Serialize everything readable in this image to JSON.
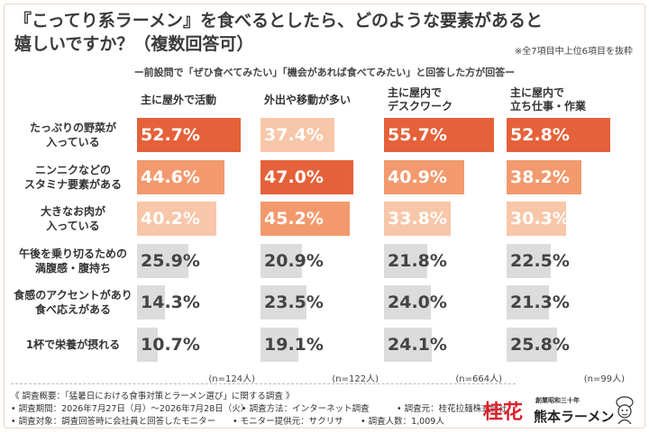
{
  "title_line1": "『こってり系ラーメン』を食べるとしたら、どのような要素があると",
  "title_line2": "嬉しいですか？（複数回答可）",
  "note": "※全7項目中上位6項目を抜粋",
  "subtitle": "ー前設問で「ぜひ食べてみたい」「機会があれば食べてみたい」と回答した方が回答ー",
  "colors": {
    "strong": "#e5613a",
    "medium": "#f29a6e",
    "light": "#f8c6a8",
    "gray": "#dcdcdc",
    "strong_text": "#ffffff",
    "medium_text": "#ffffff",
    "light_text": "#ffffff",
    "gray_text": "#444444"
  },
  "chart_data": {
    "type": "bar",
    "orientation": "horizontal",
    "unit": "%",
    "categories": [
      "たっぷりの野菜が\n入っている",
      "ニンニクなどの\nスタミナ要素がある",
      "大きなお肉が\n入っている",
      "午後を乗り切るための\n満腹感・腹持ち",
      "食感のアクセントがあり\n食べ応えがある",
      "1杯で栄養が摂れる"
    ],
    "series": [
      {
        "name": "主に屋外で活動",
        "values": [
          52.7,
          44.6,
          40.2,
          25.9,
          14.3,
          10.7
        ],
        "labels": [
          "52.7%",
          "44.6%",
          "40.2%",
          "25.9%",
          "14.3%",
          "10.7%"
        ],
        "n": "(n=124人)"
      },
      {
        "name": "外出や移動が多い",
        "values": [
          37.4,
          47.0,
          45.2,
          20.9,
          23.5,
          19.1
        ],
        "labels": [
          "37.4%",
          "47.0%",
          "45.2%",
          "20.9%",
          "23.5%",
          "19.1%"
        ],
        "n": "(n=122人)"
      },
      {
        "name": "主に屋内で\nデスクワーク",
        "values": [
          55.7,
          40.9,
          33.8,
          21.8,
          24.0,
          24.1
        ],
        "labels": [
          "55.7%",
          "40.9%",
          "33.8%",
          "21.8%",
          "24.0%",
          "24.1%"
        ],
        "n": "(n=664人)"
      },
      {
        "name": "主に屋内で\n立ち仕事・作業",
        "values": [
          52.8,
          38.2,
          30.3,
          22.5,
          21.3,
          25.8
        ],
        "labels": [
          "52.8%",
          "38.2%",
          "30.3%",
          "22.5%",
          "21.3%",
          "25.8%"
        ],
        "n": "(n=99人)"
      }
    ],
    "xlim": [
      0,
      60
    ],
    "grid": false,
    "legend": "none"
  },
  "footer": {
    "overview": "《 調査概要：「猛暑日における食事対策とラーメン選び」に関する調査 》",
    "period": "• 調査期間：2026年7月27日（月）〜2026年7月28日（火）",
    "method": "• 調査方法：インターネット調査",
    "source": "• 調査元：桂花拉麺株式会社",
    "target": "• 調査対象：調査回答時に会社員と回答したモニター",
    "provider": "• モニター提供元：サクリサ",
    "count": "• 調査人数：1,009人"
  },
  "brand": {
    "kanji": "桂花",
    "tagline": "創業昭和三十年",
    "name": "熊本ラーメン",
    "mascot_icon": "mascot-chef-icon"
  }
}
